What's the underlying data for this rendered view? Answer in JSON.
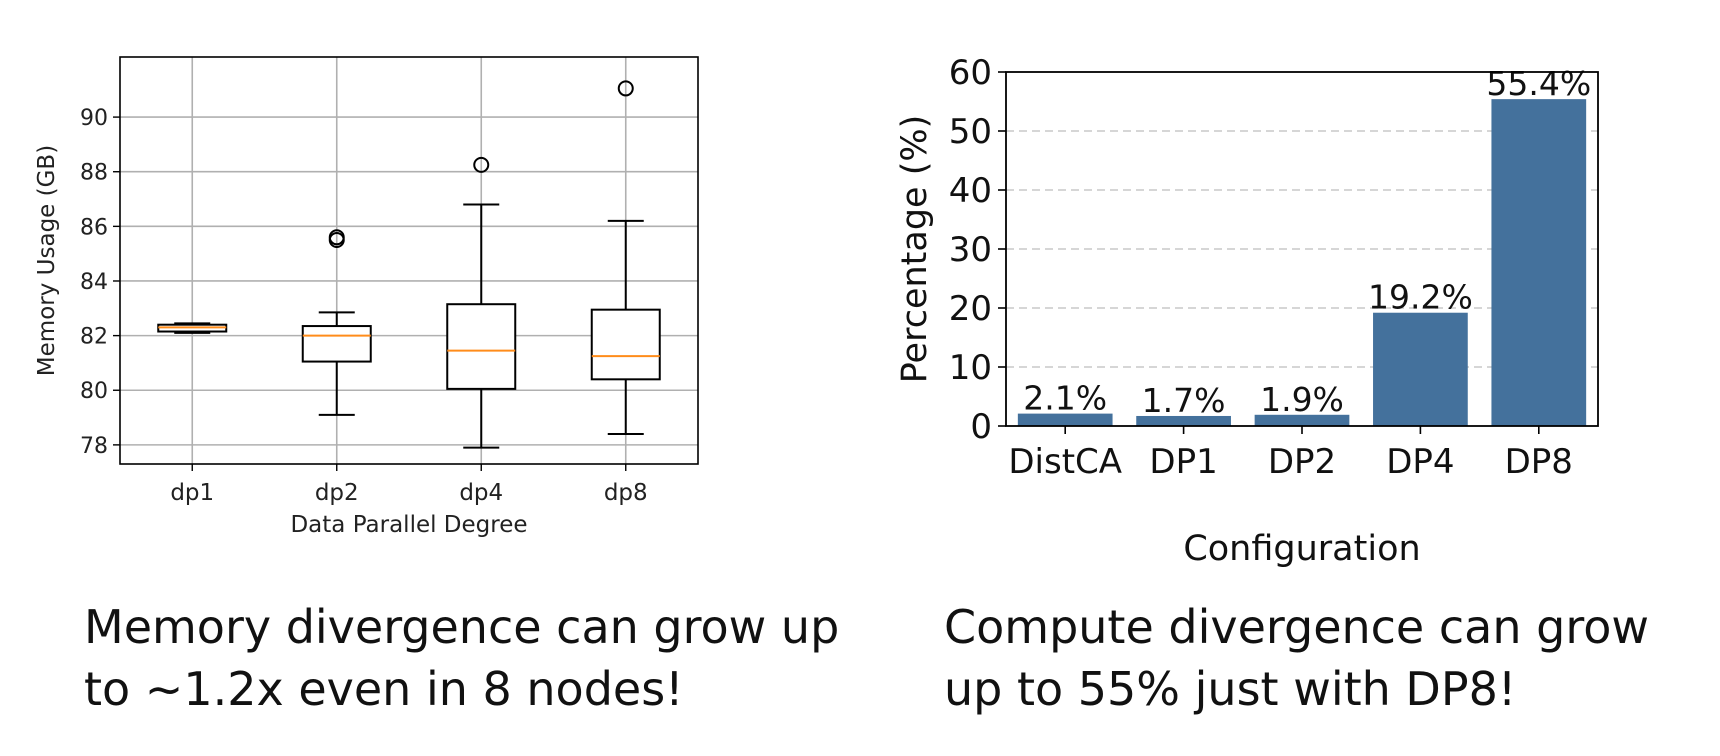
{
  "chart_data": [
    {
      "type": "box",
      "title": "",
      "xlabel": "Data Parallel Degree",
      "ylabel": "Memory Usage (GB)",
      "ylim": [
        77.3,
        92.2
      ],
      "yticks": [
        78,
        80,
        82,
        84,
        86,
        88,
        90
      ],
      "grid": true,
      "categories": [
        "dp1",
        "dp2",
        "dp4",
        "dp8"
      ],
      "boxes": [
        {
          "label": "dp1",
          "whisker_low": 82.1,
          "q1": 82.15,
          "median": 82.3,
          "q3": 82.4,
          "whisker_high": 82.45,
          "outliers": []
        },
        {
          "label": "dp2",
          "whisker_low": 79.1,
          "q1": 81.05,
          "median": 82.0,
          "q3": 82.35,
          "whisker_high": 82.85,
          "outliers": [
            85.5,
            85.6
          ]
        },
        {
          "label": "dp4",
          "whisker_low": 77.9,
          "q1": 80.05,
          "median": 81.45,
          "q3": 83.15,
          "whisker_high": 86.8,
          "outliers": [
            88.25
          ]
        },
        {
          "label": "dp8",
          "whisker_low": 78.4,
          "q1": 80.4,
          "median": 81.25,
          "q3": 82.95,
          "whisker_high": 86.2,
          "outliers": [
            91.05
          ]
        }
      ],
      "box_color": "#000000",
      "median_color": "#ff8c1a"
    },
    {
      "type": "bar",
      "title": "",
      "xlabel": "Configuration",
      "ylabel": "Percentage (%)",
      "ylim": [
        0,
        60
      ],
      "yticks": [
        0,
        10,
        20,
        30,
        40,
        50,
        60
      ],
      "grid": "horizontal-dashed",
      "categories": [
        "DistCA",
        "DP1",
        "DP2",
        "DP4",
        "DP8"
      ],
      "values": [
        2.1,
        1.7,
        1.9,
        19.2,
        55.4
      ],
      "data_labels": [
        "2.1%",
        "1.7%",
        "1.9%",
        "19.2%",
        "55.4%"
      ],
      "bar_color": "#44719c"
    }
  ],
  "captions": {
    "left": "Memory divergence can grow up to ~1.2x even in 8 nodes!",
    "right": "Compute divergence can grow up to 55% just with DP8!"
  }
}
